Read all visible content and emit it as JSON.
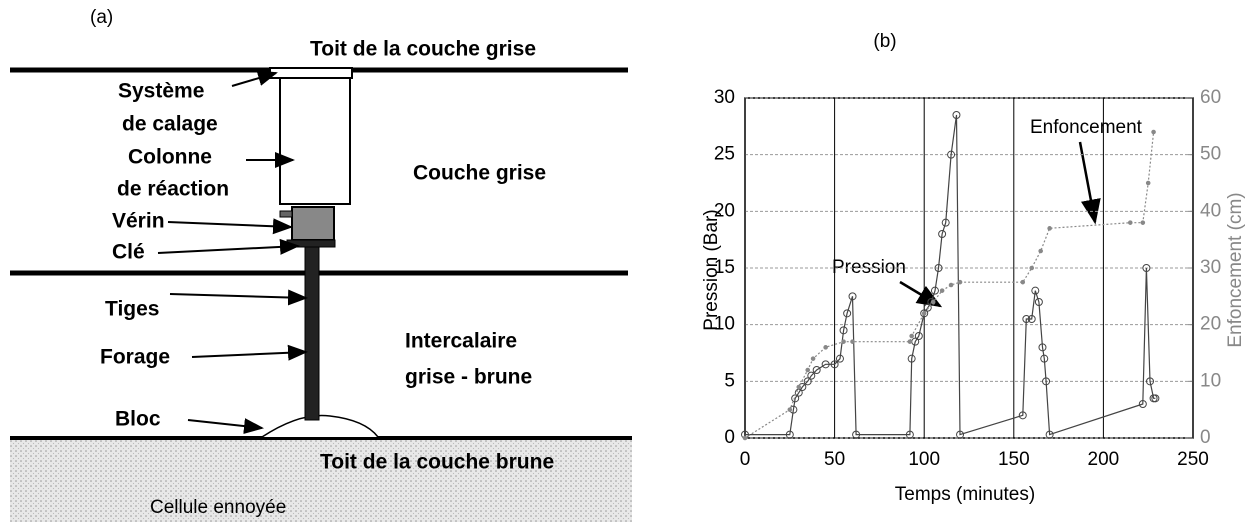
{
  "diagram": {
    "panel_label": "(a)",
    "top_label": "Toit de la couche grise",
    "systeme": [
      "Système",
      "de calage"
    ],
    "colonne": [
      "Colonne",
      "de réaction"
    ],
    "couche_grise": "Couche grise",
    "verin": "Vérin",
    "cle": "Clé",
    "tiges": "Tiges",
    "forage": "Forage",
    "intercalaire": [
      "Intercalaire",
      "grise - brune"
    ],
    "bloc": "Bloc",
    "bottom_label": "Toit de la couche brune",
    "cellule": "Cellule ennoyée"
  },
  "chart_data": {
    "type": "line",
    "title": "(b)",
    "xlabel": "Temps (minutes)",
    "ylabel": "Pression (Bar)",
    "y2label": "Enfoncement (cm)",
    "xlim": [
      0,
      250
    ],
    "xticks": [
      0,
      50,
      100,
      150,
      200,
      250
    ],
    "ylim": [
      0,
      30
    ],
    "yticks": [
      0,
      5,
      10,
      15,
      20,
      25,
      30
    ],
    "y2lim": [
      0,
      60
    ],
    "y2ticks": [
      0,
      10,
      20,
      30,
      40,
      50,
      60
    ],
    "grid": true,
    "annotations": [
      "Pression",
      "Enfoncement"
    ],
    "series": [
      {
        "name": "Pression",
        "color": "#444444",
        "marker": "circle",
        "x": [
          0,
          25,
          27,
          28,
          30,
          32,
          35,
          37,
          40,
          45,
          50,
          53,
          55,
          57,
          60,
          62,
          92,
          93,
          95,
          97,
          100,
          102,
          104,
          106,
          108,
          110,
          112,
          115,
          118,
          120,
          155,
          157,
          160,
          162,
          164,
          166,
          167,
          168,
          170,
          222,
          224,
          226,
          228,
          229
        ],
        "values": [
          0.3,
          0.3,
          2.5,
          3.5,
          4,
          4.5,
          5,
          5.5,
          6,
          6.5,
          6.5,
          7,
          9.5,
          11,
          12.5,
          0.3,
          0.3,
          7,
          8.5,
          9,
          11,
          11.5,
          12,
          13,
          15,
          18,
          19,
          25,
          28.5,
          0.3,
          2,
          10.5,
          10.5,
          13,
          12,
          8,
          7,
          5,
          0.3,
          3,
          15,
          5,
          3.5,
          3.5
        ]
      },
      {
        "name": "Enfoncement",
        "color": "#888888",
        "marker": "dot",
        "axis": "y2",
        "x": [
          0,
          25,
          30,
          35,
          38,
          45,
          55,
          60,
          92,
          93,
          100,
          105,
          110,
          115,
          120,
          155,
          160,
          165,
          170,
          215,
          222,
          225,
          228
        ],
        "values": [
          0,
          5,
          9,
          12,
          14,
          16,
          17,
          17,
          17,
          18,
          22,
          24,
          26,
          27,
          27.5,
          27.5,
          30,
          33,
          37,
          38,
          38,
          45,
          54
        ]
      }
    ]
  }
}
